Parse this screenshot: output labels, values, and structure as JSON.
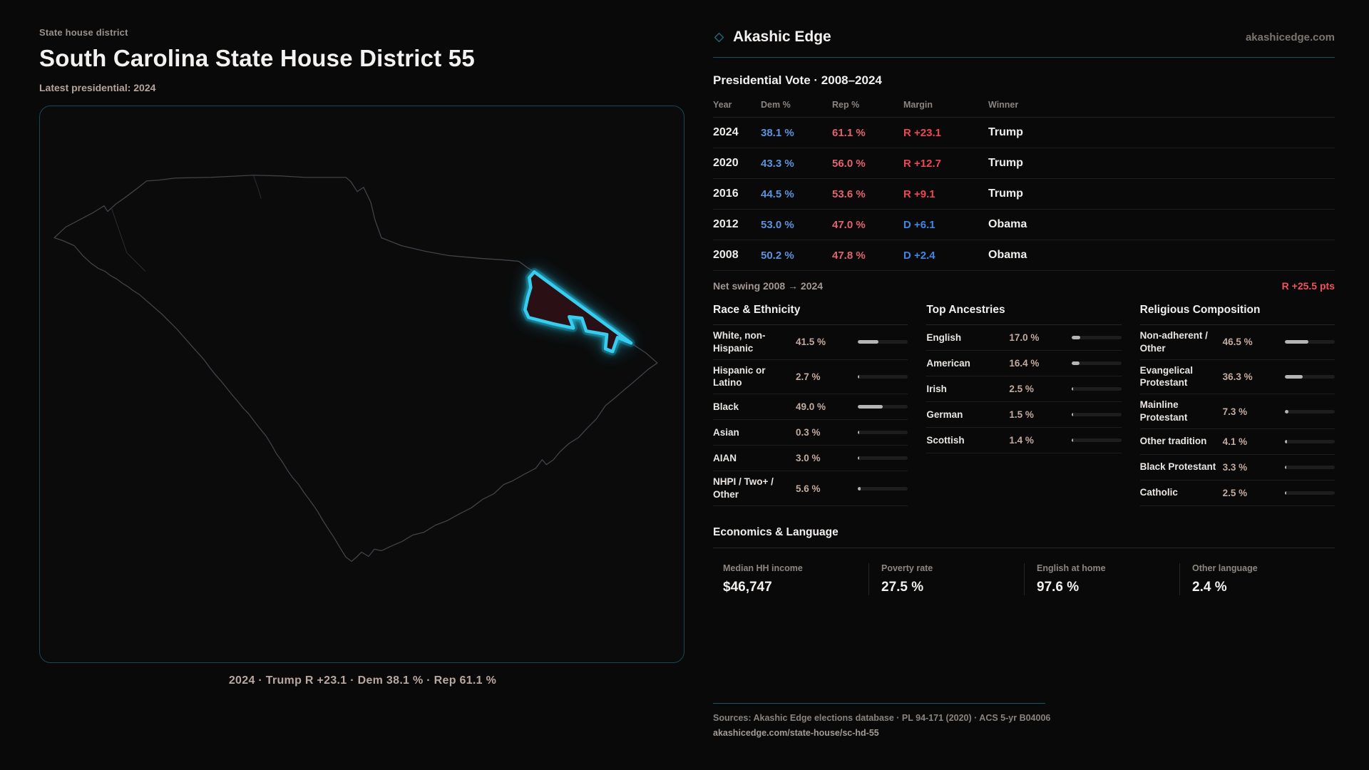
{
  "header_left": {
    "eyebrow": "State house district",
    "title": "South Carolina State House District 55",
    "subtitle": "Latest presidential: 2024"
  },
  "map": {
    "region": "South Carolina",
    "highlight": "District 55",
    "caption": "2024 · Trump R +23.1 · Dem 38.1 % · Rep 61.1 %"
  },
  "brand": {
    "name": "Akashic Edge",
    "domain": "akashicedge.com"
  },
  "vote_table": {
    "title": "Presidential Vote · 2008–2024",
    "columns": [
      "Year",
      "Dem %",
      "Rep %",
      "Margin",
      "Winner"
    ],
    "rows": [
      {
        "year": "2024",
        "dem": "38.1 %",
        "rep": "61.1 %",
        "margin": "R +23.1",
        "margin_party": "R",
        "winner": "Trump"
      },
      {
        "year": "2020",
        "dem": "43.3 %",
        "rep": "56.0 %",
        "margin": "R +12.7",
        "margin_party": "R",
        "winner": "Trump"
      },
      {
        "year": "2016",
        "dem": "44.5 %",
        "rep": "53.6 %",
        "margin": "R +9.1",
        "margin_party": "R",
        "winner": "Trump"
      },
      {
        "year": "2012",
        "dem": "53.0 %",
        "rep": "47.0 %",
        "margin": "D +6.1",
        "margin_party": "D",
        "winner": "Obama"
      },
      {
        "year": "2008",
        "dem": "50.2 %",
        "rep": "47.8 %",
        "margin": "D +2.4",
        "margin_party": "D",
        "winner": "Obama"
      }
    ],
    "net_swing_label": "Net swing 2008 → 2024",
    "net_swing_value": "R +25.5 pts"
  },
  "demographics": [
    {
      "title": "Race & Ethnicity",
      "rows": [
        {
          "label": "White, non-Hispanic",
          "value": "41.5 %",
          "pct": 41.5
        },
        {
          "label": "Hispanic or Latino",
          "value": "2.7 %",
          "pct": 2.7
        },
        {
          "label": "Black",
          "value": "49.0 %",
          "pct": 49.0
        },
        {
          "label": "Asian",
          "value": "0.3 %",
          "pct": 0.3
        },
        {
          "label": "AIAN",
          "value": "3.0 %",
          "pct": 3.0
        },
        {
          "label": "NHPI / Two+ / Other",
          "value": "5.6 %",
          "pct": 5.6
        }
      ]
    },
    {
      "title": "Top Ancestries",
      "rows": [
        {
          "label": "English",
          "value": "17.0 %",
          "pct": 17.0
        },
        {
          "label": "American",
          "value": "16.4 %",
          "pct": 16.4
        },
        {
          "label": "Irish",
          "value": "2.5 %",
          "pct": 2.5
        },
        {
          "label": "German",
          "value": "1.5 %",
          "pct": 1.5
        },
        {
          "label": "Scottish",
          "value": "1.4 %",
          "pct": 1.4
        }
      ]
    },
    {
      "title": "Religious Composition",
      "rows": [
        {
          "label": "Non-adherent / Other",
          "value": "46.5 %",
          "pct": 46.5
        },
        {
          "label": "Evangelical Protestant",
          "value": "36.3 %",
          "pct": 36.3
        },
        {
          "label": "Mainline Protestant",
          "value": "7.3 %",
          "pct": 7.3
        },
        {
          "label": "Other tradition",
          "value": "4.1 %",
          "pct": 4.1
        },
        {
          "label": "Black Protestant",
          "value": "3.3 %",
          "pct": 3.3
        },
        {
          "label": "Catholic",
          "value": "2.5 %",
          "pct": 2.5
        }
      ]
    }
  ],
  "economics": {
    "title": "Economics & Language",
    "stats": [
      {
        "label": "Median HH income",
        "value": "$46,747"
      },
      {
        "label": "Poverty rate",
        "value": "27.5 %"
      },
      {
        "label": "English at home",
        "value": "97.6 %"
      },
      {
        "label": "Other language",
        "value": "2.4 %"
      }
    ]
  },
  "footer": {
    "sources": "Sources: Akashic Edge elections database · PL 94-171 (2020) · ACS 5-yr B04006",
    "url": "akashicedge.com/state-house/sc-hd-55"
  },
  "colors": {
    "dem_blue": "#5b93de",
    "rep_red": "#e2636e",
    "margin_rep_red": "#ee4753",
    "margin_dem_blue": "#3f86e8",
    "swing_red": "#f0525c",
    "accent_teal": "#1d4e59",
    "district_glow": "#38cdee"
  }
}
